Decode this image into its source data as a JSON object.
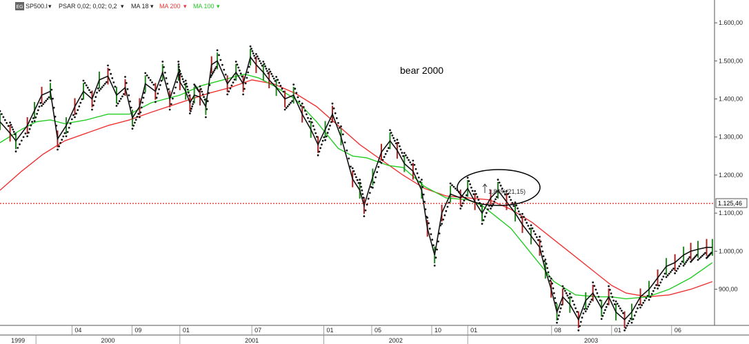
{
  "legend": {
    "symbol_badge": "EG",
    "symbol": "SP500.I",
    "psar": "PSAR 0,02; 0,02; 0,2",
    "ma18": "MA 18",
    "ma200": "MA 200",
    "ma100": "MA 100",
    "dropdown_glyph": "▾",
    "colors": {
      "ma18": "#222222",
      "ma200": "#ee3333",
      "ma100": "#22cc22"
    }
  },
  "annotations": {
    "bear_text": "bear 2000",
    "measure_text": "1,84%(21,15)",
    "hline_label": "1.125,46"
  },
  "chart_data": {
    "type": "line",
    "title": "",
    "xlabel": "",
    "ylabel": "",
    "ylim": [
      805,
      1660
    ],
    "xlim": [
      1998.75,
      2003.715
    ],
    "grid": false,
    "y_scale": "linear",
    "y_ticks": [
      "1.600,00",
      "1.500,00",
      "1.400,00",
      "1.300,00",
      "1.200,00",
      "1.100,00",
      "1.000,00",
      "900,00"
    ],
    "y_tick_values": [
      1600,
      1500,
      1400,
      1300,
      1200,
      1100,
      1000,
      900
    ],
    "x_month_ticks": [
      {
        "label": "04",
        "x": 1999.25
      },
      {
        "label": "09",
        "x": 1999.667
      },
      {
        "label": "01",
        "x": 2000.0
      },
      {
        "label": "07",
        "x": 2000.5
      },
      {
        "label": "01",
        "x": 2001.0
      },
      {
        "label": "05",
        "x": 2001.333
      },
      {
        "label": "10",
        "x": 2001.75
      },
      {
        "label": "01",
        "x": 2002.0
      },
      {
        "label": "08",
        "x": 2002.583
      },
      {
        "label": "01",
        "x": 2003.0
      },
      {
        "label": "06",
        "x": 2003.417
      }
    ],
    "x_year_ticks": [
      {
        "label": "1999",
        "start": 1998.75,
        "end": 1999.0
      },
      {
        "label": "2000",
        "start": 1999.0,
        "end": 2000.0
      },
      {
        "label": "2001",
        "start": 2000.0,
        "end": 2001.0
      },
      {
        "label": "2002",
        "start": 2001.0,
        "end": 2002.0
      },
      {
        "label": "2003",
        "start": 2002.0,
        "end": 2003.715
      }
    ],
    "horizontal_line": {
      "value": 1125.46,
      "color": "#dd2222",
      "style": "dotted"
    },
    "series": [
      {
        "name": "SP500.I",
        "color": "#111111",
        "x": [
          1998.75,
          1998.82,
          1998.86,
          1998.94,
          1998.99,
          1999.04,
          1999.1,
          1999.15,
          1999.21,
          1999.27,
          1999.33,
          1999.39,
          1999.44,
          1999.5,
          1999.56,
          1999.62,
          1999.67,
          1999.72,
          1999.76,
          1999.83,
          1999.88,
          1999.93,
          1999.99,
          2000.0,
          2000.04,
          2000.07,
          2000.1,
          2000.14,
          2000.18,
          2000.22,
          2000.26,
          2000.33,
          2000.39,
          2000.44,
          2000.49,
          2000.53,
          2000.58,
          2000.62,
          2000.67,
          2000.73,
          2000.79,
          2000.85,
          2000.91,
          2000.96,
          2001.01,
          2001.06,
          2001.12,
          2001.2,
          2001.25,
          2001.28,
          2001.34,
          2001.4,
          2001.46,
          2001.51,
          2001.56,
          2001.62,
          2001.68,
          2001.72,
          2001.77,
          2001.82,
          2001.88,
          2001.95,
          2002.0,
          2002.05,
          2002.1,
          2002.16,
          2002.21,
          2002.27,
          2002.33,
          2002.38,
          2002.44,
          2002.5,
          2002.54,
          2002.58,
          2002.62,
          2002.66,
          2002.71,
          2002.77,
          2002.82,
          2002.87,
          2002.93,
          2002.98,
          2003.03,
          2003.09,
          2003.14,
          2003.2,
          2003.26,
          2003.32,
          2003.38,
          2003.44,
          2003.5,
          2003.55,
          2003.6,
          2003.66,
          2003.7
        ],
        "values": [
          1340,
          1310,
          1290,
          1330,
          1370,
          1410,
          1420,
          1295,
          1330,
          1380,
          1420,
          1400,
          1450,
          1460,
          1410,
          1430,
          1350,
          1380,
          1440,
          1420,
          1470,
          1400,
          1470,
          1445,
          1420,
          1390,
          1410,
          1405,
          1380,
          1490,
          1500,
          1440,
          1470,
          1440,
          1510,
          1490,
          1470,
          1450,
          1430,
          1400,
          1410,
          1360,
          1320,
          1280,
          1320,
          1360,
          1300,
          1190,
          1160,
          1120,
          1195,
          1260,
          1290,
          1265,
          1230,
          1210,
          1160,
          1060,
          990,
          1100,
          1150,
          1140,
          1165,
          1130,
          1100,
          1140,
          1160,
          1130,
          1100,
          1070,
          1040,
          1010,
          950,
          900,
          840,
          880,
          860,
          820,
          870,
          890,
          850,
          880,
          840,
          820,
          840,
          880,
          900,
          930,
          960,
          970,
          990,
          1000,
          1005,
          1010,
          1010
        ]
      },
      {
        "name": "MA 200",
        "color": "#ee3333",
        "x": [
          1998.75,
          1998.9,
          1999.05,
          1999.2,
          1999.35,
          1999.5,
          1999.65,
          1999.8,
          2000.0,
          2000.2,
          2000.35,
          2000.5,
          2000.65,
          2000.8,
          2000.95,
          2001.1,
          2001.25,
          2001.4,
          2001.55,
          2001.7,
          2001.85,
          2002.0,
          2002.15,
          2002.3,
          2002.45,
          2002.6,
          2002.75,
          2002.9,
          2003.0,
          2003.1,
          2003.25,
          2003.4,
          2003.55,
          2003.7
        ],
        "values": [
          1160,
          1210,
          1255,
          1290,
          1310,
          1330,
          1345,
          1365,
          1390,
          1415,
          1430,
          1450,
          1440,
          1415,
          1380,
          1330,
          1280,
          1240,
          1200,
          1165,
          1145,
          1140,
          1135,
          1110,
          1075,
          1030,
          985,
          940,
          910,
          890,
          880,
          885,
          900,
          920
        ]
      },
      {
        "name": "MA 100",
        "color": "#22cc22",
        "x": [
          1998.75,
          1998.9,
          1999.0,
          1999.1,
          1999.2,
          1999.35,
          1999.5,
          1999.65,
          1999.8,
          2000.0,
          2000.15,
          2000.3,
          2000.45,
          2000.55,
          2000.65,
          2000.8,
          2000.95,
          2001.1,
          2001.2,
          2001.3,
          2001.45,
          2001.55,
          2001.7,
          2001.85,
          2002.0,
          2002.1,
          2002.2,
          2002.3,
          2002.45,
          2002.6,
          2002.75,
          2002.9,
          2003.0,
          2003.1,
          2003.25,
          2003.4,
          2003.55,
          2003.7
        ],
        "values": [
          1285,
          1320,
          1340,
          1345,
          1335,
          1345,
          1360,
          1360,
          1390,
          1410,
          1435,
          1450,
          1465,
          1455,
          1435,
          1400,
          1340,
          1270,
          1250,
          1245,
          1225,
          1220,
          1170,
          1140,
          1135,
          1120,
          1090,
          1060,
          990,
          920,
          885,
          880,
          880,
          875,
          880,
          900,
          930,
          970
        ]
      }
    ]
  }
}
